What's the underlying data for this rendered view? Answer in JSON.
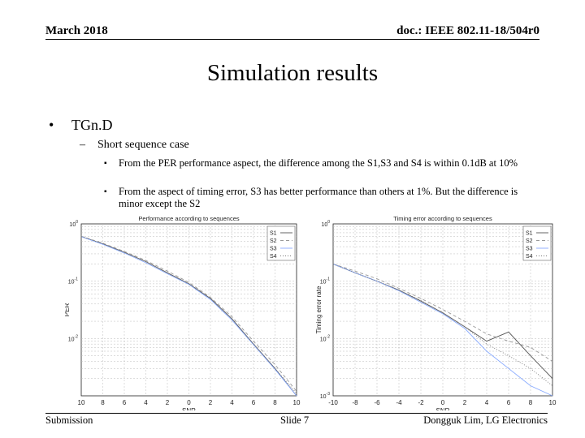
{
  "header": {
    "date": "March 2018",
    "doc": "doc.: IEEE 802.11-18/504r0"
  },
  "title": "Simulation results",
  "bullets": {
    "level1": {
      "marker": "•",
      "text": "TGn.D"
    },
    "level2": {
      "marker": "–",
      "text": "Short sequence case"
    },
    "level3": [
      {
        "marker": "▪",
        "text": "From the PER performance aspect, the difference among the S1,S3 and S4 is within 0.1dB at 10%"
      },
      {
        "marker": "▪",
        "text": "From the aspect of timing error, S3 has better performance than others at 1%. But the difference is minor except the S2"
      }
    ]
  },
  "chart_data": [
    {
      "type": "line",
      "title": "Performance according to sequences",
      "xlabel": "SNR",
      "ylabel": "PER",
      "y_scale": "log",
      "xlim": [
        -10,
        10
      ],
      "ylim": [
        0.001,
        1
      ],
      "x_tick_labels": [
        "10",
        "8",
        "6",
        "4",
        "2",
        "0",
        "2",
        "4",
        "6",
        "8",
        "10"
      ],
      "y_tick_labels": [
        {
          "base": "10",
          "exp": "0"
        },
        {
          "base": "10",
          "exp": "-1"
        },
        {
          "base": "10",
          "exp": "-2"
        }
      ],
      "legend": [
        "S1",
        "S2",
        "S3",
        "S4"
      ],
      "legend_position": "top-right",
      "grid": true,
      "x": [
        -10,
        -8,
        -6,
        -4,
        -2,
        0,
        2,
        4,
        6,
        8,
        10
      ],
      "series": [
        {
          "name": "S1",
          "color": "#555555",
          "dash": "",
          "values": [
            0.6,
            0.45,
            0.32,
            0.22,
            0.14,
            0.09,
            0.05,
            0.022,
            0.008,
            0.003,
            0.001
          ]
        },
        {
          "name": "S2",
          "color": "#999999",
          "dash": "4 3",
          "values": [
            0.61,
            0.46,
            0.33,
            0.23,
            0.15,
            0.095,
            0.052,
            0.024,
            0.009,
            0.0035,
            0.0012
          ]
        },
        {
          "name": "S3",
          "color": "#88aaff",
          "dash": "",
          "values": [
            0.6,
            0.44,
            0.31,
            0.21,
            0.135,
            0.088,
            0.048,
            0.021,
            0.0078,
            0.0029,
            0.001
          ]
        },
        {
          "name": "S4",
          "color": "#777777",
          "dash": "1 2",
          "values": [
            0.6,
            0.45,
            0.32,
            0.22,
            0.14,
            0.09,
            0.05,
            0.022,
            0.008,
            0.003,
            0.0011
          ]
        }
      ]
    },
    {
      "type": "line",
      "title": "Timing error according to sequences",
      "xlabel": "SNR",
      "ylabel": "Timing error rate",
      "y_scale": "log",
      "xlim": [
        -10,
        10
      ],
      "ylim": [
        0.001,
        1
      ],
      "x_tick_labels": [
        "-10",
        "-8",
        "-6",
        "-4",
        "-2",
        "0",
        "2",
        "4",
        "6",
        "8",
        "10"
      ],
      "y_tick_labels": [
        {
          "base": "10",
          "exp": "0"
        },
        {
          "base": "10",
          "exp": "-1"
        },
        {
          "base": "10",
          "exp": "-2"
        },
        {
          "base": "10",
          "exp": "-3"
        }
      ],
      "legend": [
        "S1",
        "S2",
        "S3",
        "S4"
      ],
      "legend_position": "top-right",
      "grid": true,
      "x": [
        -10,
        -8,
        -6,
        -4,
        -2,
        0,
        2,
        4,
        6,
        8,
        10
      ],
      "series": [
        {
          "name": "S1",
          "color": "#555555",
          "dash": "",
          "values": [
            0.2,
            0.14,
            0.1,
            0.07,
            0.045,
            0.028,
            0.016,
            0.009,
            0.013,
            0.005,
            0.002
          ]
        },
        {
          "name": "S2",
          "color": "#999999",
          "dash": "4 3",
          "values": [
            0.2,
            0.15,
            0.11,
            0.075,
            0.05,
            0.032,
            0.02,
            0.012,
            0.009,
            0.007,
            0.004
          ]
        },
        {
          "name": "S3",
          "color": "#88aaff",
          "dash": "",
          "values": [
            0.2,
            0.14,
            0.1,
            0.068,
            0.043,
            0.027,
            0.015,
            0.006,
            0.003,
            0.0015,
            0.001
          ]
        },
        {
          "name": "S4",
          "color": "#777777",
          "dash": "1 2",
          "values": [
            0.2,
            0.14,
            0.1,
            0.07,
            0.046,
            0.028,
            0.016,
            0.008,
            0.005,
            0.003,
            0.0015
          ]
        }
      ]
    }
  ],
  "footer": {
    "left": "Submission",
    "middle": "Slide 7",
    "right": "Dongguk Lim, LG Electronics"
  }
}
